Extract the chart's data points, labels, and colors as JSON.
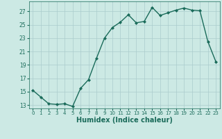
{
  "x": [
    0,
    1,
    2,
    3,
    4,
    5,
    6,
    7,
    8,
    9,
    10,
    11,
    12,
    13,
    14,
    15,
    16,
    17,
    18,
    19,
    20,
    21,
    22,
    23
  ],
  "y": [
    15.2,
    14.2,
    13.2,
    13.1,
    13.2,
    12.8,
    15.5,
    16.8,
    20.0,
    23.0,
    24.6,
    25.4,
    26.5,
    25.3,
    25.5,
    27.6,
    26.4,
    26.8,
    27.2,
    27.5,
    27.2,
    27.1,
    22.5,
    19.5
  ],
  "line_color": "#1a6b5a",
  "marker": "D",
  "marker_size": 2.0,
  "linewidth": 1.0,
  "xlabel": "Humidex (Indice chaleur)",
  "xlabel_fontsize": 7,
  "ylabel_ticks": [
    13,
    15,
    17,
    19,
    21,
    23,
    25,
    27
  ],
  "xtick_labels": [
    "0",
    "1",
    "2",
    "3",
    "4",
    "5",
    "6",
    "7",
    "8",
    "9",
    "10",
    "11",
    "12",
    "13",
    "14",
    "15",
    "16",
    "17",
    "18",
    "19",
    "20",
    "21",
    "22",
    "23"
  ],
  "xlim": [
    -0.5,
    23.5
  ],
  "ylim": [
    12.5,
    28.5
  ],
  "bg_color": "#cce9e4",
  "grid_color": "#aacccc",
  "tick_color": "#1a6b5a",
  "label_color": "#1a6b5a"
}
